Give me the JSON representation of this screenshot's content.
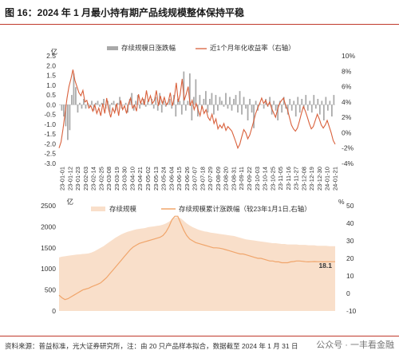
{
  "title": "图 16：2024 年 1 月最小持有期产品线规模整体保持平稳",
  "footer": "资料来源：普益标准，光大证券研究所，注：由 20 只产品样本拟合，数据截至 2024 年 1 月 31 日",
  "watermark": "公众号 · 一丰看金融",
  "chart_data": [
    {
      "type": "bar",
      "left_unit": "亿",
      "right_unit": "",
      "legend": [
        "存续规模日涨跌幅",
        "近1个月年化收益率（右轴）"
      ],
      "left_ticks": [
        "2.5",
        "2.0",
        "1.5",
        "1.0",
        "0.5",
        "0.0",
        "-0.5",
        "-1.0",
        "-1.5",
        "-2.0",
        "-2.5",
        "-3.0"
      ],
      "right_ticks": [
        "10%",
        "8%",
        "6%",
        "4%",
        "2%",
        "0%",
        "-2%",
        "-4%"
      ],
      "ylim_left": [
        -3.0,
        2.5
      ],
      "ylim_right": [
        -4,
        10
      ],
      "x_labels": [
        "23-01-01",
        "23-01-12",
        "23-01-23",
        "23-02-03",
        "23-02-14",
        "23-02-25",
        "23-03-08",
        "23-03-19",
        "23-03-30",
        "23-04-10",
        "23-04-21",
        "23-05-02",
        "23-05-13",
        "23-05-24",
        "23-06-04",
        "23-06-15",
        "23-06-26",
        "23-07-07",
        "23-07-18",
        "23-07-29",
        "23-08-09",
        "23-08-20",
        "23-08-31",
        "23-09-11",
        "23-09-22",
        "23-10-03",
        "23-10-14",
        "23-10-25",
        "23-11-05",
        "23-11-16",
        "23-11-27",
        "23-12-08",
        "23-12-19",
        "23-12-30",
        "24-01-10",
        "24-01-21"
      ],
      "series_bars": [
        0.0,
        -0.3,
        -0.6,
        -1.1,
        -1.8,
        -1.3,
        0.5,
        1.6,
        0.9,
        -0.4,
        0.1,
        -0.2,
        0.3,
        -0.2,
        0.1,
        -0.1,
        0.2,
        -0.3,
        0.1,
        0.2,
        -0.1,
        0.1,
        0.3,
        -0.2,
        0.2,
        -0.4,
        0.1,
        0.2,
        -0.3,
        0.1,
        0.4,
        -0.2,
        0.0,
        0.1,
        -0.4,
        0.3,
        0.6,
        -0.3,
        0.2,
        0.5,
        -0.2,
        0.1,
        0.3,
        -0.1,
        0.2,
        0.0,
        0.3,
        -0.2,
        0.4,
        -0.3,
        0.6,
        -0.4,
        0.2,
        -0.1,
        0.1,
        0.3,
        -0.2,
        0.5,
        -0.6,
        0.3,
        0.2,
        -0.5,
        1.7,
        -0.3,
        0.2,
        1.6,
        -0.8,
        0.4,
        1.3,
        -0.6,
        0.5,
        -0.2,
        0.3,
        0.7,
        -0.4,
        0.3,
        0.6,
        -0.5,
        0.5,
        -0.3,
        0.4,
        0.2,
        -0.1,
        0.6,
        -0.2,
        0.4,
        -0.3,
        0.3,
        0.5,
        -0.4,
        0.7,
        -0.5,
        0.4,
        -0.2,
        -0.8,
        0.3,
        -0.4,
        -1.2,
        0.2,
        -0.3,
        0.1,
        0.0,
        -0.2,
        0.3,
        -0.1,
        0.4,
        -0.5,
        0.2,
        -0.3,
        -0.8,
        0.2,
        -0.4,
        0.4,
        -0.2,
        -0.5,
        0.3,
        -0.3,
        0.2,
        -0.6,
        0.4,
        -0.4,
        0.3,
        -0.2,
        0.5,
        -0.3,
        0.2,
        -0.4,
        0.5,
        -0.2,
        0.3,
        -0.5,
        0.2,
        -0.8,
        0.4,
        -0.3,
        0.2,
        -0.6,
        0.5
      ],
      "series_line": [
        -2.0,
        -1.2,
        0.5,
        2.5,
        4.5,
        6.0,
        7.0,
        8.2,
        6.8,
        6.0,
        5.2,
        4.8,
        5.5,
        4.0,
        4.2,
        3.2,
        3.5,
        2.8,
        3.6,
        2.5,
        3.2,
        2.2,
        3.8,
        2.5,
        4.5,
        3.0,
        2.0,
        3.2,
        2.6,
        3.8,
        2.2,
        4.2,
        3.0,
        3.5,
        2.5,
        3.8,
        4.5,
        3.2,
        3.6,
        2.8,
        5.0,
        3.8,
        4.5,
        3.6,
        5.5,
        4.0,
        4.8,
        3.8,
        4.2,
        5.5,
        3.5,
        4.8,
        3.8,
        4.6,
        3.6,
        4.0,
        5.2,
        3.5,
        4.5,
        6.5,
        4.0,
        5.0,
        7.0,
        4.2,
        5.0,
        6.0,
        3.5,
        4.2,
        3.0,
        3.8,
        3.0,
        2.2,
        3.5,
        2.5,
        3.0,
        2.0,
        1.6,
        2.4,
        1.2,
        1.8,
        0.5,
        1.0,
        0.6,
        1.2,
        0.3,
        0.8,
        0.5,
        0.2,
        -0.5,
        -1.2,
        -2.0,
        -1.5,
        -0.5,
        0.4,
        0.0,
        -0.8,
        -0.3,
        0.6,
        1.5,
        2.5,
        3.2,
        3.8,
        4.5,
        3.8,
        4.2,
        3.5,
        4.0,
        3.2,
        2.6,
        2.0,
        3.0,
        3.8,
        4.2,
        4.5,
        3.6,
        3.0,
        2.0,
        1.0,
        0.5,
        0.2,
        0.6,
        1.5,
        2.5,
        3.4,
        2.8,
        2.0,
        1.2,
        0.5,
        0.8,
        1.6,
        2.4,
        1.8,
        1.0,
        0.6,
        1.0,
        1.6,
        0.8,
        0.0,
        -1.0,
        -1.5
      ]
    },
    {
      "type": "area",
      "left_unit": "亿",
      "right_unit": "%",
      "legend": [
        "存续规模",
        "存续规模累计涨跌幅（较23年1月1日,右轴）"
      ],
      "left_ticks": [
        "2500",
        "2000",
        "1500",
        "1000",
        "500",
        "0"
      ],
      "right_ticks": [
        "50",
        "40",
        "30",
        "20",
        "10",
        "0",
        "-10"
      ],
      "ylim_left": [
        0,
        2500
      ],
      "ylim_right": [
        -10,
        50
      ],
      "end_label": "18.1",
      "series_area": [
        1270,
        1290,
        1300,
        1310,
        1320,
        1330,
        1340,
        1345,
        1355,
        1360,
        1370,
        1390,
        1420,
        1460,
        1500,
        1540,
        1590,
        1640,
        1690,
        1740,
        1780,
        1820,
        1850,
        1880,
        1900,
        1920,
        1940,
        1950,
        1960,
        1970,
        1990,
        2000,
        2010,
        2020,
        2030,
        2050,
        2080,
        2120,
        2170,
        2220,
        2230,
        2200,
        2140,
        2080,
        2030,
        1990,
        1960,
        1930,
        1910,
        1890,
        1880,
        1860,
        1850,
        1840,
        1830,
        1820,
        1810,
        1800,
        1790,
        1780,
        1760,
        1740,
        1720,
        1700,
        1690,
        1680,
        1670,
        1660,
        1650,
        1640,
        1630,
        1620,
        1610,
        1610,
        1600,
        1590,
        1590,
        1580,
        1580,
        1580,
        1580,
        1570,
        1570,
        1570,
        1560,
        1560,
        1560,
        1550,
        1550,
        1550,
        1550,
        1540,
        1540,
        1540
      ],
      "series_line": [
        -1.0,
        -2.5,
        -3.5,
        -3.0,
        -2.0,
        -1.0,
        0.0,
        1.0,
        2.0,
        2.5,
        3.0,
        3.8,
        4.5,
        5.2,
        6.0,
        7.5,
        9.0,
        11.0,
        13.0,
        15.0,
        17.0,
        19.0,
        21.0,
        23.0,
        25.0,
        26.5,
        27.5,
        28.5,
        29.0,
        29.5,
        30.0,
        30.5,
        31.0,
        31.5,
        32.0,
        33.0,
        35.0,
        38.0,
        42.0,
        44.0,
        44.0,
        40.0,
        36.0,
        33.0,
        31.0,
        30.0,
        29.0,
        28.5,
        28.0,
        27.5,
        27.0,
        26.5,
        26.0,
        26.0,
        25.8,
        25.5,
        25.0,
        24.5,
        24.0,
        23.5,
        23.0,
        22.5,
        22.5,
        22.0,
        21.5,
        21.0,
        20.5,
        20.0,
        20.0,
        19.5,
        19.0,
        18.5,
        18.5,
        18.0,
        18.0,
        17.5,
        17.5,
        17.5,
        18.0,
        18.2,
        18.5,
        18.5,
        18.3,
        18.1,
        18.0,
        18.1,
        18.2,
        18.1,
        18.1,
        18.0,
        18.1,
        18.1,
        18.1,
        18.1
      ]
    }
  ]
}
